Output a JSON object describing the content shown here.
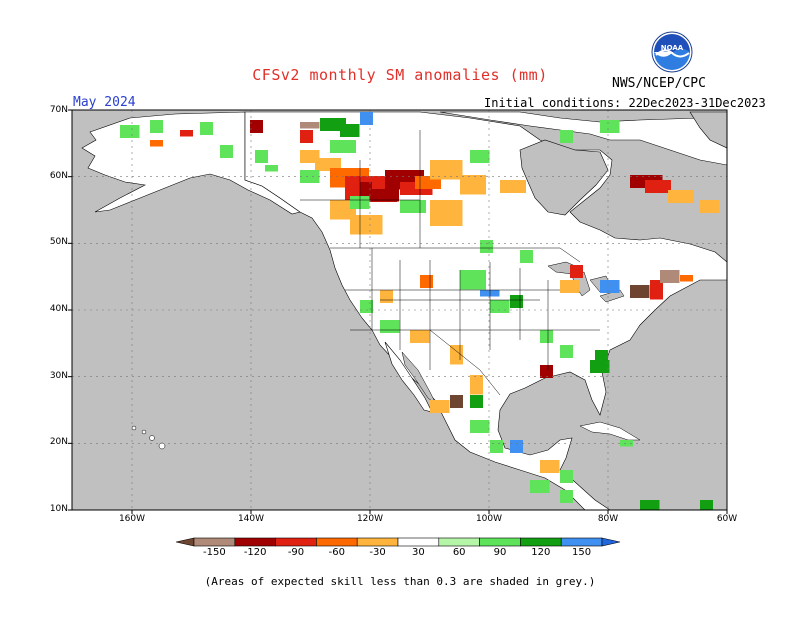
{
  "header": {
    "title": "CFSv2 monthly SM anomalies (mm)",
    "agency": "NWS/NCEP/CPC",
    "target_month": "May 2024",
    "initial_conditions": "Initial conditions: 22Dec2023-31Dec2023",
    "logo_text": "NOAA"
  },
  "map": {
    "lat_labels": [
      "70N",
      "60N",
      "50N",
      "40N",
      "30N",
      "20N",
      "10N"
    ],
    "lon_labels": [
      "160W",
      "140W",
      "120W",
      "100W",
      "80W",
      "60W"
    ],
    "colors": {
      "ocean": "#c0c0c0",
      "land": "#ffffff",
      "skill_mask": "#c0c0c0"
    }
  },
  "colorbar": {
    "labels": [
      "-150",
      "-120",
      "-90",
      "-60",
      "-30",
      "30",
      "60",
      "90",
      "120",
      "150"
    ],
    "colors": [
      "#6e4530",
      "#b08a78",
      "#a00000",
      "#e02010",
      "#ff6a00",
      "#ffb53d",
      "#ffffff",
      "#b4f5a8",
      "#5ee35a",
      "#12a012",
      "#3f90f0",
      "#2266dd"
    ]
  },
  "footnote": "(Areas of expected skill less than 0.3 are shaded in grey.)"
}
